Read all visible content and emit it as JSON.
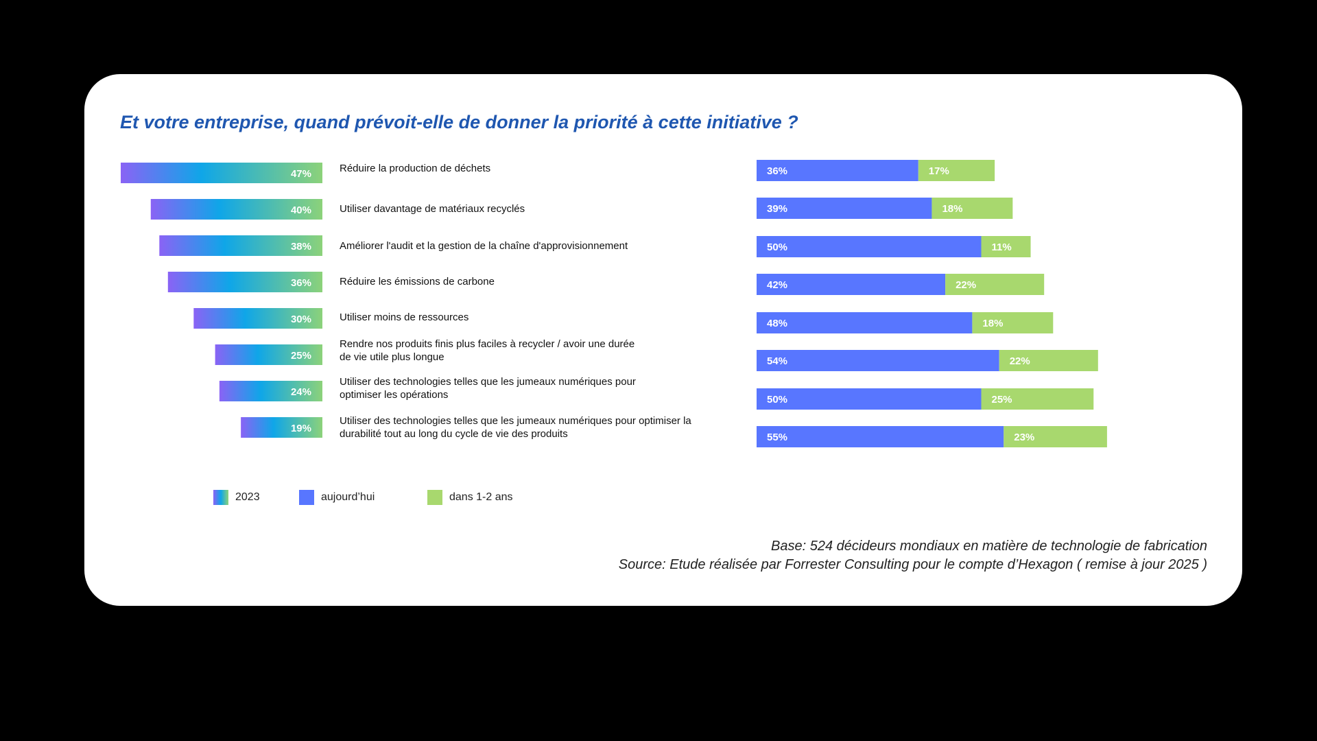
{
  "title": "Et votre entreprise, quand prévoit-elle de donner la priorité à cette initiative ?",
  "colors": {
    "gradient_start": "#8a63f5",
    "gradient_mid": "#0fa6e8",
    "gradient_end": "#8cd27a",
    "today": "#5876ff",
    "soon": "#a8d86e"
  },
  "chart_data": {
    "type": "bar",
    "orientation": "horizontal",
    "categories": [
      "Réduire la production de déchets",
      "Utiliser davantage de matériaux recyclés",
      "Améliorer l'audit et la gestion de la chaîne d'approvisionnement",
      "Réduire les émissions de carbone",
      "Utiliser moins de ressources",
      "Rendre nos produits finis plus faciles à recycler / avoir une durée de vie utile plus longue",
      "Utiliser des technologies telles que les jumeaux numériques pour optimiser les opérations",
      "Utiliser des technologies telles que les jumeaux numériques pour optimiser la durabilité tout au long du cycle de vie des produits"
    ],
    "category_lines": [
      [
        "Réduire la production de déchets"
      ],
      [
        "Utiliser davantage de matériaux recyclés"
      ],
      [
        "Améliorer l'audit et la gestion de la chaîne d'approvisionnement"
      ],
      [
        "Réduire les émissions de carbone"
      ],
      [
        "Utiliser moins de ressources"
      ],
      [
        "Rendre nos produits finis plus faciles à recycler / avoir une durée",
        "de vie utile plus longue"
      ],
      [
        "Utiliser des technologies telles que les jumeaux numériques pour",
        "optimiser les opérations"
      ],
      [
        "Utiliser des technologies telles que les jumeaux numériques pour optimiser la",
        "durabilité tout au long du cycle de vie des produits"
      ]
    ],
    "series": [
      {
        "name": "2023",
        "values": [
          47,
          40,
          38,
          36,
          30,
          25,
          24,
          19
        ],
        "labels": [
          "47%",
          "40%",
          "38%",
          "36%",
          "30%",
          "25%",
          "24%",
          "19%"
        ]
      },
      {
        "name": "aujourd’hui",
        "values": [
          36,
          39,
          50,
          42,
          48,
          54,
          50,
          55
        ],
        "labels": [
          "36%",
          "39%",
          "50%",
          "42%",
          "48%",
          "54%",
          "50%",
          "55%"
        ]
      },
      {
        "name": "dans 1-2 ans",
        "values": [
          17,
          18,
          11,
          22,
          18,
          22,
          25,
          23
        ],
        "labels": [
          "17%",
          "18%",
          "11%",
          "22%",
          "18%",
          "22%",
          "25%",
          "23%"
        ]
      }
    ],
    "legend": [
      "2023",
      "aujourd’hui",
      "dans 1-2 ans"
    ]
  },
  "footnotes": {
    "base": "Base: 524 décideurs mondiaux en matière de technologie de fabrication",
    "source": "Source: Etude réalisée par Forrester Consulting pour le compte d’Hexagon ( remise à jour 2025 )"
  }
}
